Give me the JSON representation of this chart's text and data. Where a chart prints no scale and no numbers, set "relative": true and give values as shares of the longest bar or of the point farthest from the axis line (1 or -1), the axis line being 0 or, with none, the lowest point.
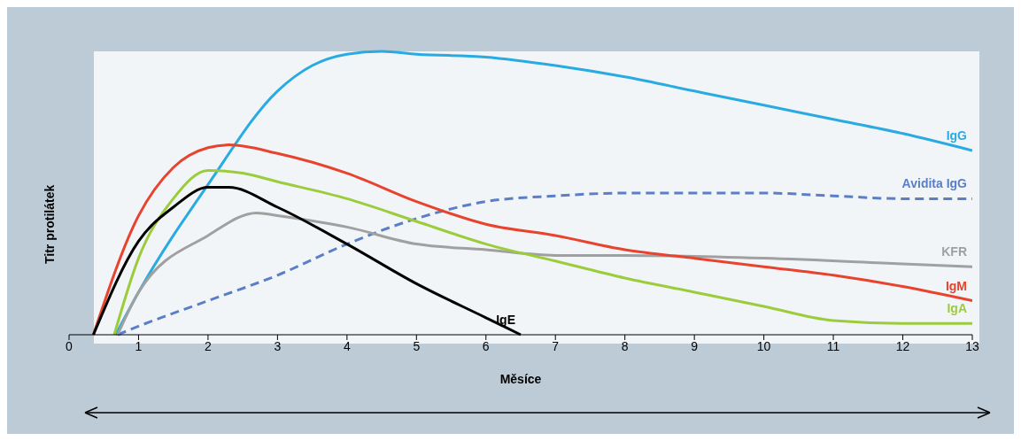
{
  "chart_data": {
    "type": "line",
    "relative": true,
    "xlabel": "Měsíce",
    "ylabel": "Titr protilátek",
    "xlim": [
      0,
      13
    ],
    "xticks": [
      0,
      1,
      2,
      3,
      4,
      5,
      6,
      7,
      8,
      9,
      10,
      11,
      12,
      13
    ],
    "grid": false,
    "legend": false,
    "marker": "none",
    "series": [
      {
        "name": "IgG",
        "color": "#29abe2",
        "x": [
          0.67,
          1,
          2,
          3,
          3.5,
          4,
          4.5,
          5,
          6,
          7,
          8,
          9,
          10,
          11,
          12,
          13
        ],
        "values": [
          0,
          0.15,
          0.53,
          0.86,
          0.95,
          0.99,
          1,
          0.99,
          0.98,
          0.95,
          0.91,
          0.86,
          0.81,
          0.76,
          0.71,
          0.65
        ]
      },
      {
        "name": "Avidita IgG",
        "color": "#5b7fc7",
        "line_style": "dashed",
        "x": [
          0.7,
          1,
          2,
          3,
          4,
          5,
          6,
          7,
          8,
          9,
          10,
          11,
          12,
          13
        ],
        "values": [
          0,
          0.03,
          0.12,
          0.21,
          0.32,
          0.41,
          0.47,
          0.49,
          0.5,
          0.5,
          0.5,
          0.49,
          0.48,
          0.48
        ]
      },
      {
        "name": "KFR",
        "color": "#a0a0a0",
        "x": [
          0.7,
          1,
          2,
          2.7,
          3,
          4,
          5,
          6,
          7,
          8,
          10,
          12,
          13
        ],
        "values": [
          0,
          0.15,
          0.35,
          0.43,
          0.42,
          0.38,
          0.32,
          0.3,
          0.28,
          0.28,
          0.27,
          0.25,
          0.24
        ]
      },
      {
        "name": "IgM",
        "color": "#e8432e",
        "x": [
          0.35,
          1,
          1.5,
          2,
          2.3,
          3,
          4,
          5,
          6,
          7,
          8,
          9,
          10,
          11,
          12,
          13
        ],
        "values": [
          0,
          0.42,
          0.59,
          0.66,
          0.67,
          0.64,
          0.57,
          0.47,
          0.39,
          0.35,
          0.3,
          0.27,
          0.24,
          0.21,
          0.17,
          0.12
        ]
      },
      {
        "name": "IgA",
        "color": "#9ccc3c",
        "x": [
          0.65,
          1,
          1.5,
          2,
          2.5,
          3,
          4,
          5,
          6,
          7,
          8,
          9,
          10,
          11,
          12,
          13
        ],
        "values": [
          0,
          0.27,
          0.48,
          0.58,
          0.57,
          0.54,
          0.48,
          0.4,
          0.32,
          0.26,
          0.2,
          0.15,
          0.1,
          0.05,
          0.04,
          0.04
        ]
      },
      {
        "name": "IgE",
        "color": "#000000",
        "x": [
          0.35,
          1,
          1.5,
          2,
          2.3,
          3,
          4,
          5,
          6,
          6.5
        ],
        "values": [
          0,
          0.33,
          0.45,
          0.52,
          0.52,
          0.45,
          0.32,
          0.18,
          0.06,
          0
        ]
      }
    ]
  }
}
